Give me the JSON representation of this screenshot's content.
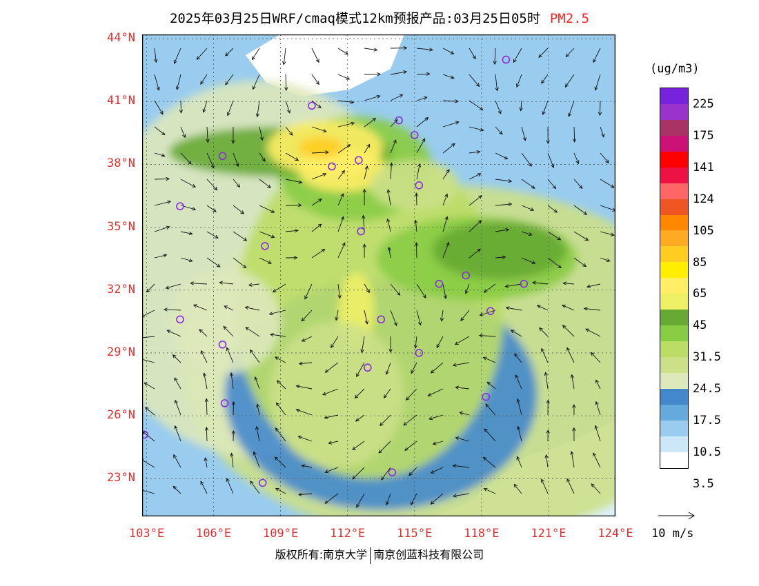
{
  "title": {
    "text": "2025年03月25日WRF/cmaq模式12km预报产品:03月25日05时",
    "species": "PM2.5"
  },
  "map": {
    "lon_range": [
      102.8,
      124.0
    ],
    "lat_range": [
      21.2,
      44.2
    ],
    "lat_labels": [
      {
        "value": 44,
        "text": "44°N"
      },
      {
        "value": 41,
        "text": "41°N"
      },
      {
        "value": 38,
        "text": "38°N"
      },
      {
        "value": 35,
        "text": "35°N"
      },
      {
        "value": 32,
        "text": "32°N"
      },
      {
        "value": 29,
        "text": "29°N"
      },
      {
        "value": 26,
        "text": "26°N"
      },
      {
        "value": 23,
        "text": "23°N"
      }
    ],
    "lon_labels": [
      {
        "value": 103,
        "text": "103°E"
      },
      {
        "value": 106,
        "text": "106°E"
      },
      {
        "value": 109,
        "text": "109°E"
      },
      {
        "value": 112,
        "text": "112°E"
      },
      {
        "value": 115,
        "text": "115°E"
      },
      {
        "value": 118,
        "text": "118°E"
      },
      {
        "value": 121,
        "text": "121°E"
      },
      {
        "value": 124,
        "text": "124°E"
      }
    ],
    "city_markers": [
      {
        "lon": 119.1,
        "lat": 43.0
      },
      {
        "lon": 110.4,
        "lat": 40.8
      },
      {
        "lon": 114.3,
        "lat": 40.1
      },
      {
        "lon": 115.0,
        "lat": 39.4
      },
      {
        "lon": 106.4,
        "lat": 38.4
      },
      {
        "lon": 111.3,
        "lat": 37.9
      },
      {
        "lon": 112.5,
        "lat": 38.2
      },
      {
        "lon": 115.2,
        "lat": 37.0
      },
      {
        "lon": 104.5,
        "lat": 36.0
      },
      {
        "lon": 112.6,
        "lat": 34.8
      },
      {
        "lon": 108.3,
        "lat": 34.1
      },
      {
        "lon": 116.1,
        "lat": 32.3
      },
      {
        "lon": 117.3,
        "lat": 32.7
      },
      {
        "lon": 119.9,
        "lat": 32.3
      },
      {
        "lon": 104.5,
        "lat": 30.6
      },
      {
        "lon": 113.5,
        "lat": 30.6
      },
      {
        "lon": 118.4,
        "lat": 31.0
      },
      {
        "lon": 106.4,
        "lat": 29.4
      },
      {
        "lon": 115.2,
        "lat": 29.0
      },
      {
        "lon": 112.9,
        "lat": 28.3
      },
      {
        "lon": 106.5,
        "lat": 26.6
      },
      {
        "lon": 118.2,
        "lat": 26.9
      },
      {
        "lon": 102.9,
        "lat": 25.1
      },
      {
        "lon": 114.0,
        "lat": 23.3
      },
      {
        "lon": 108.2,
        "lat": 22.8
      }
    ],
    "pollution_zones": [
      {
        "lon": 116.5,
        "lat": 28.5,
        "rx": 12.0,
        "ry": 8.5,
        "level": 6
      },
      {
        "lon": 108.0,
        "lat": 33.0,
        "rx": 7.5,
        "ry": 9.0,
        "level": 5
      },
      {
        "lon": 113.5,
        "lat": 27.0,
        "rx": 7.0,
        "ry": 5.5,
        "level": 4
      },
      {
        "lon": 113.0,
        "lat": 31.0,
        "rx": 6.0,
        "ry": 8.0,
        "level": 7
      },
      {
        "lon": 117.8,
        "lat": 33.5,
        "rx": 4.5,
        "ry": 2.0,
        "level": 8
      },
      {
        "lon": 118.8,
        "lat": 33.9,
        "rx": 3.0,
        "ry": 1.4,
        "level": 9
      },
      {
        "lon": 112.3,
        "lat": 37.8,
        "rx": 3.5,
        "ry": 2.5,
        "level": 8
      },
      {
        "lon": 109.0,
        "lat": 38.6,
        "rx": 5.0,
        "ry": 1.2,
        "level": 9
      },
      {
        "lon": 111.0,
        "lat": 38.8,
        "rx": 2.6,
        "ry": 1.3,
        "level": 11
      },
      {
        "lon": 111.8,
        "lat": 37.7,
        "rx": 2.0,
        "ry": 1.0,
        "level": 11
      },
      {
        "lon": 110.8,
        "lat": 38.8,
        "rx": 1.0,
        "ry": 0.5,
        "level": 13
      },
      {
        "lon": 112.4,
        "lat": 31.0,
        "rx": 0.8,
        "ry": 1.8,
        "level": 10
      },
      {
        "lon": 111.5,
        "lat": 27.0,
        "rx": 3.0,
        "ry": 3.5,
        "level": 6
      },
      {
        "lon": 106.5,
        "lat": 30.5,
        "rx": 2.5,
        "ry": 2.5,
        "level": 5
      },
      {
        "lon": 115.0,
        "lat": 37.0,
        "rx": 2.0,
        "ry": 1.2,
        "level": 6
      }
    ]
  },
  "colorbar": {
    "unit": "(ug/m3)",
    "colors": [
      "#7722dd",
      "#9933cc",
      "#aa3366",
      "#cc1177",
      "#ff0000",
      "#ee1144",
      "#ff6666",
      "#ee5522",
      "#ff8800",
      "#ffaa22",
      "#ffcc22",
      "#ffee00",
      "#ffee66",
      "#f0f066",
      "#66aa33",
      "#88cc44",
      "#bbdd66",
      "#cce088",
      "#dde8bb",
      "#4488cc",
      "#66aadd",
      "#99ccee",
      "#cce8f8",
      "#ffffff"
    ],
    "labels": [
      "225",
      "175",
      "141",
      "124",
      "105",
      "85",
      "65",
      "45",
      "31.5",
      "24.5",
      "17.5",
      "10.5",
      "3.5"
    ]
  },
  "wind_legend": "10 m/s",
  "copyright": {
    "left": "版权所有:南京大学",
    "right": "南京创蓝科技有限公司"
  }
}
